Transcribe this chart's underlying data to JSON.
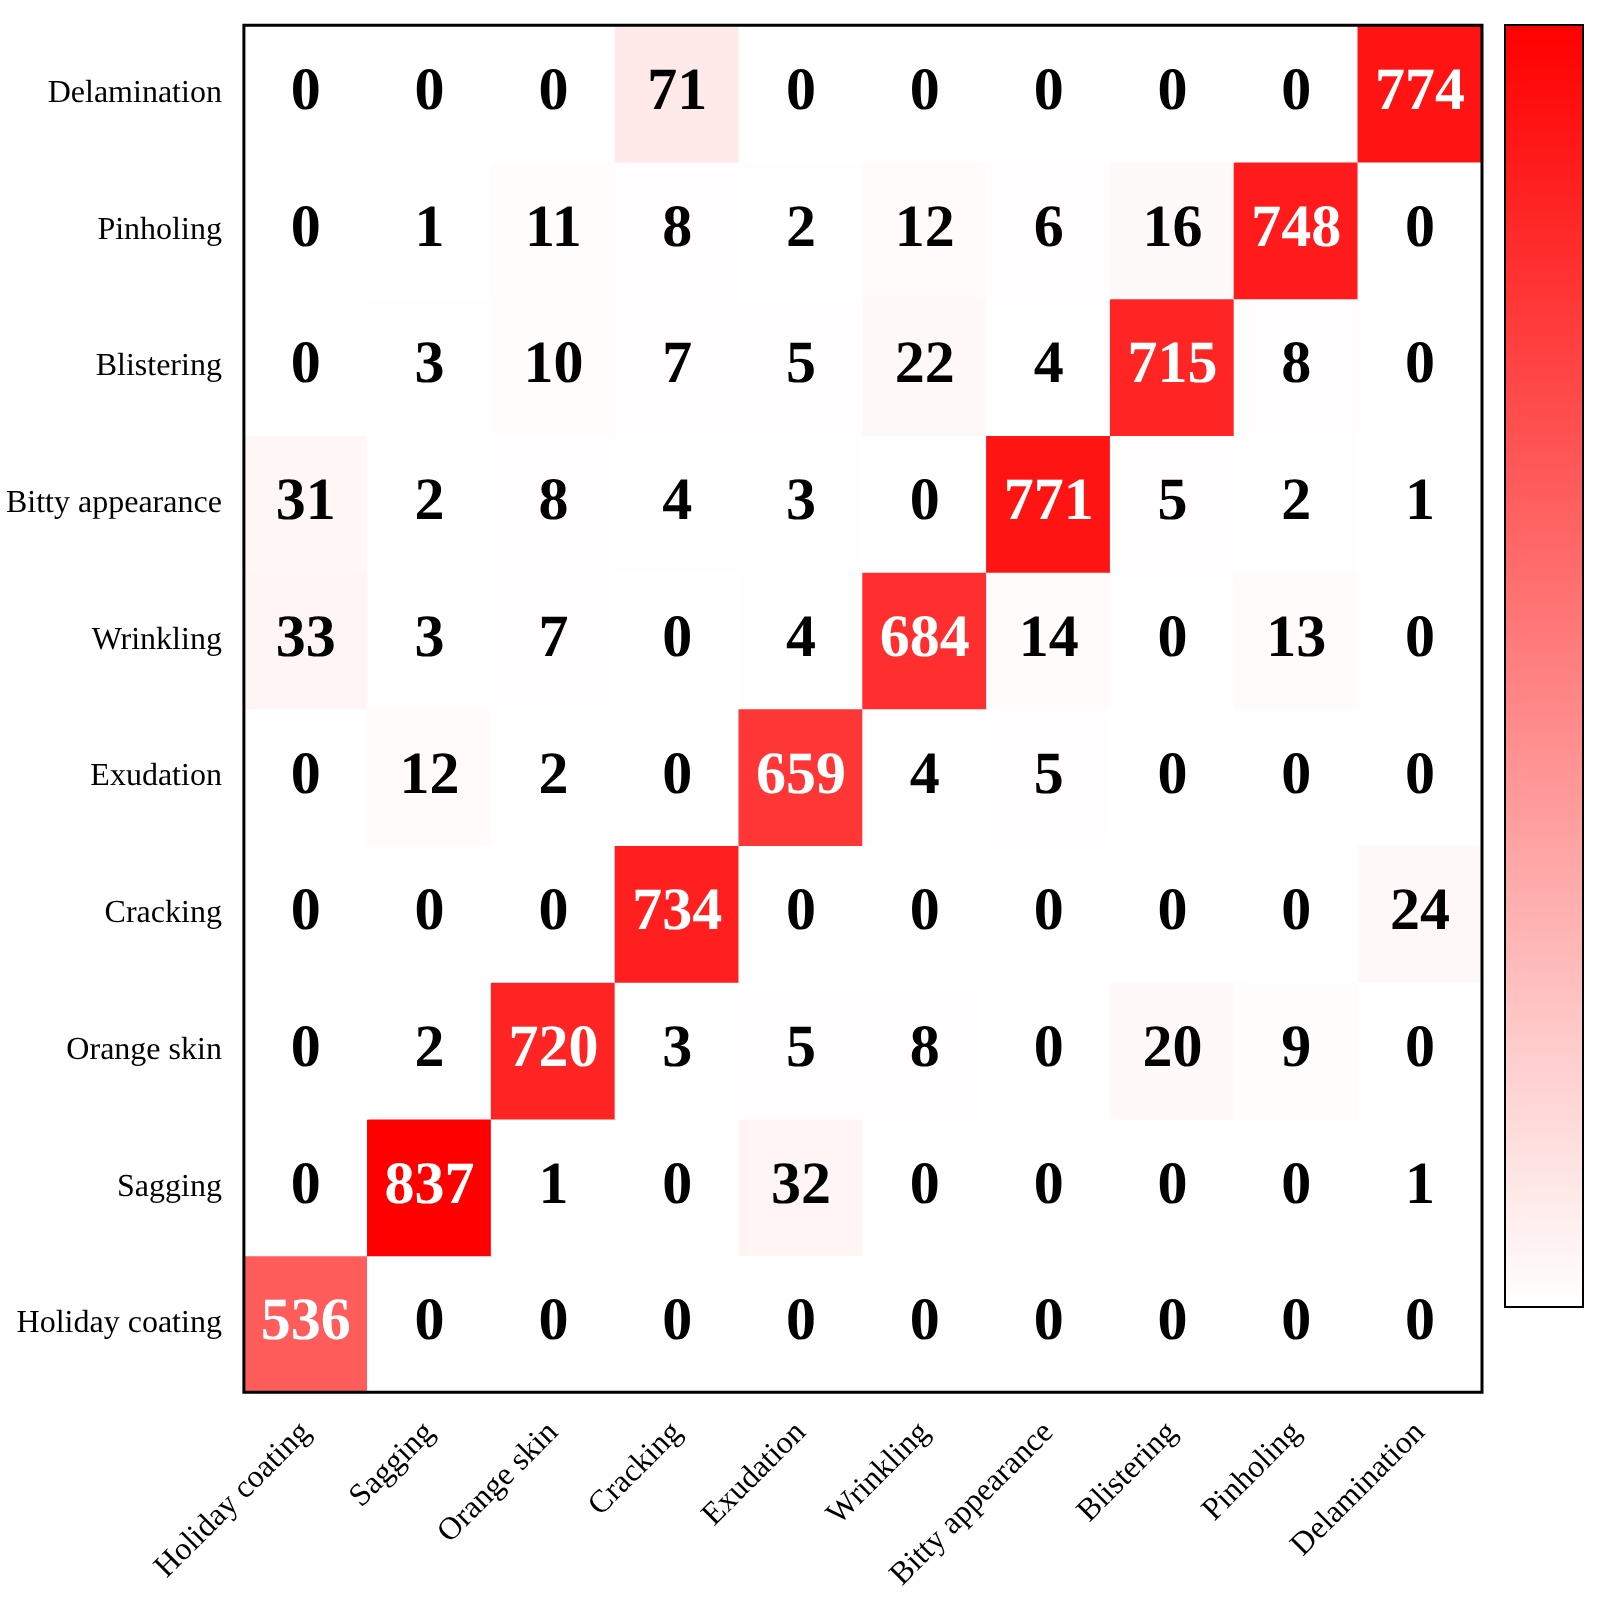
{
  "chart_data": {
    "type": "heatmap",
    "color": "#ff0000",
    "data_labels": true,
    "categories": [
      "Holiday coating",
      "Sagging",
      "Orange skin",
      "Cracking",
      "Exudation",
      "Wrinkling",
      "Bitty appearance",
      "Blistering",
      "Pinholing",
      "Delamination"
    ],
    "y_categories": [
      "Delamination",
      "Pinholing",
      "Blistering",
      "Bitty appearance",
      "Wrinkling",
      "Exudation",
      "Cracking",
      "Orange skin",
      "Sagging",
      "Holiday coating"
    ],
    "cells": [
      [
        0,
        0,
        0,
        71,
        0,
        0,
        0,
        0,
        0,
        774
      ],
      [
        0,
        1,
        11,
        8,
        2,
        12,
        6,
        16,
        748,
        0
      ],
      [
        0,
        3,
        10,
        7,
        5,
        22,
        4,
        715,
        8,
        0
      ],
      [
        31,
        2,
        8,
        4,
        3,
        0,
        771,
        5,
        2,
        1
      ],
      [
        33,
        3,
        7,
        0,
        4,
        684,
        14,
        0,
        13,
        0
      ],
      [
        0,
        12,
        2,
        0,
        659,
        4,
        5,
        0,
        0,
        0
      ],
      [
        0,
        0,
        0,
        734,
        0,
        0,
        0,
        0,
        0,
        24
      ],
      [
        0,
        2,
        720,
        3,
        5,
        8,
        0,
        20,
        9,
        0
      ],
      [
        0,
        837,
        1,
        0,
        32,
        0,
        0,
        0,
        0,
        1
      ],
      [
        536,
        0,
        0,
        0,
        0,
        0,
        0,
        0,
        0,
        0
      ]
    ]
  }
}
